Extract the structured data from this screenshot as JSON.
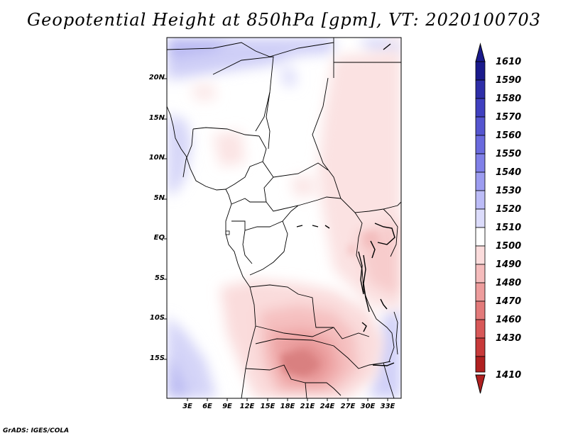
{
  "title": "Geopotential Height at 850hPa [gpm], VT: 2020100703",
  "lat_labels": [
    "20N",
    "15N",
    "10N",
    "5N",
    "EQ",
    "5S",
    "10S",
    "15S"
  ],
  "lon_labels": [
    "3E",
    "6E",
    "9E",
    "12E",
    "15E",
    "18E",
    "21E",
    "24E",
    "27E",
    "30E",
    "33E"
  ],
  "colorbar": {
    "levels": [
      "1610",
      "1590",
      "1580",
      "1570",
      "1560",
      "1550",
      "1540",
      "1530",
      "1520",
      "1510",
      "1500",
      "1490",
      "1480",
      "1470",
      "1460",
      "1430",
      "1410"
    ],
    "colors": [
      "#1a1a8c",
      "#2e2ea8",
      "#4040c0",
      "#5555d0",
      "#6a6ade",
      "#8080e8",
      "#9c9cf0",
      "#bcbcf7",
      "#dcdcfb",
      "#ffffff",
      "#fbdcdc",
      "#f5bcbc",
      "#ed9c9c",
      "#e37a7a",
      "#d85858",
      "#c83a3a",
      "#b02020"
    ]
  },
  "credit": "GrADS: IGES/COLA"
}
